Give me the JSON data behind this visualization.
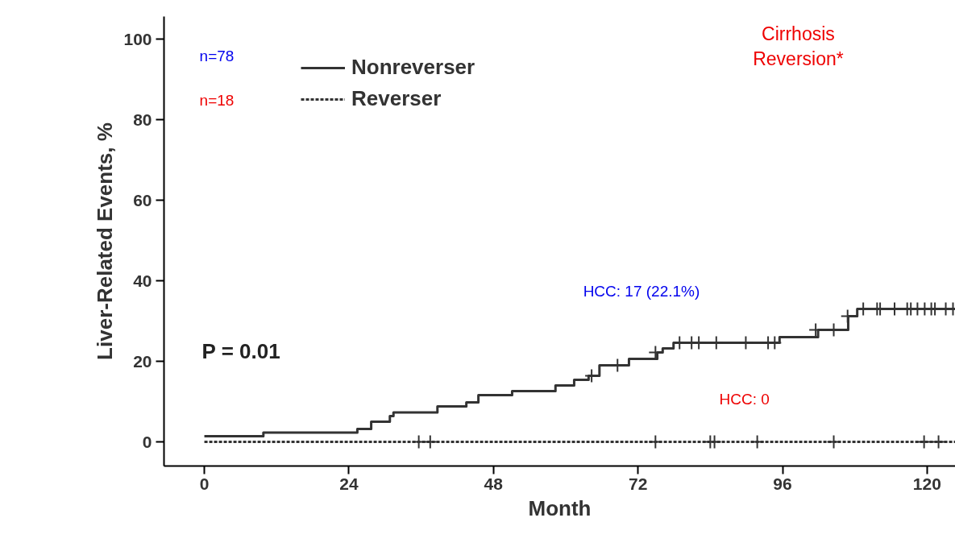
{
  "chart_data": {
    "type": "step",
    "xlabel": "Month",
    "ylabel": "Liver-Related Events, %",
    "xlim": [
      -6.7,
      124.7
    ],
    "ylim": [
      -6,
      105.6
    ],
    "xticks": [
      0,
      24,
      48,
      72,
      96,
      120
    ],
    "yticks": [
      0,
      20,
      40,
      60,
      80,
      100
    ],
    "grid": false,
    "legend": "top left",
    "series": [
      {
        "name": "Nonreverser",
        "color": "#333333",
        "line_style": "solid",
        "x": [
          0,
          9.8,
          25.4,
          27.7,
          30.8,
          31.4,
          38.7,
          43.5,
          45.5,
          51.1,
          58.3,
          61.4,
          63.8,
          65.6,
          70.5,
          75.2,
          76.1,
          77.9,
          95.5,
          101.9,
          106.9,
          108.4,
          124.7
        ],
        "values": [
          1.4,
          2.3,
          3.2,
          5.0,
          6.4,
          7.3,
          8.8,
          9.8,
          11.6,
          12.6,
          14.0,
          15.4,
          16.4,
          19.0,
          20.6,
          22.2,
          23.2,
          24.6,
          26.0,
          27.8,
          31.2,
          33.0,
          33.0
        ]
      },
      {
        "name": "Reverser",
        "color": "#333333",
        "line_style": "dashed",
        "x": [
          0,
          124.7
        ],
        "values": [
          0,
          0
        ]
      },
      {
        "type": "scatter",
        "marker": "cross",
        "color": "#333333",
        "x": [
          64.3,
          68.6,
          74.9,
          78.9,
          80.9,
          82.1,
          85.0,
          89.9,
          93.6,
          94.7,
          101.5,
          104.5,
          106.8,
          109.4,
          111.7,
          112.2,
          114.6,
          116.7,
          117.3,
          118.4,
          119.6,
          120.7,
          121.3,
          123.1,
          124.3
        ],
        "values": [
          16.4,
          19.0,
          22.2,
          24.6,
          24.6,
          24.6,
          24.6,
          24.6,
          24.6,
          24.6,
          27.8,
          27.8,
          31.2,
          33.0,
          33.0,
          33.0,
          33.0,
          33.0,
          33.0,
          33.0,
          33.0,
          33.0,
          33.0,
          33.0,
          33.0
        ]
      },
      {
        "type": "scatter",
        "marker": "cross",
        "color": "#333333",
        "x": [
          35.6,
          37.5,
          74.9,
          84.0,
          84.7,
          91.8,
          104.5,
          119.5,
          121.9
        ],
        "values": [
          0,
          0,
          0,
          0,
          0,
          0,
          0,
          0,
          0
        ]
      }
    ],
    "annotations": [
      "n=78",
      "n=18",
      "Cirrhosis\nReversion*",
      "HCC: 17 (22.1%)",
      "HCC: 0",
      "P = 0.01"
    ]
  }
}
